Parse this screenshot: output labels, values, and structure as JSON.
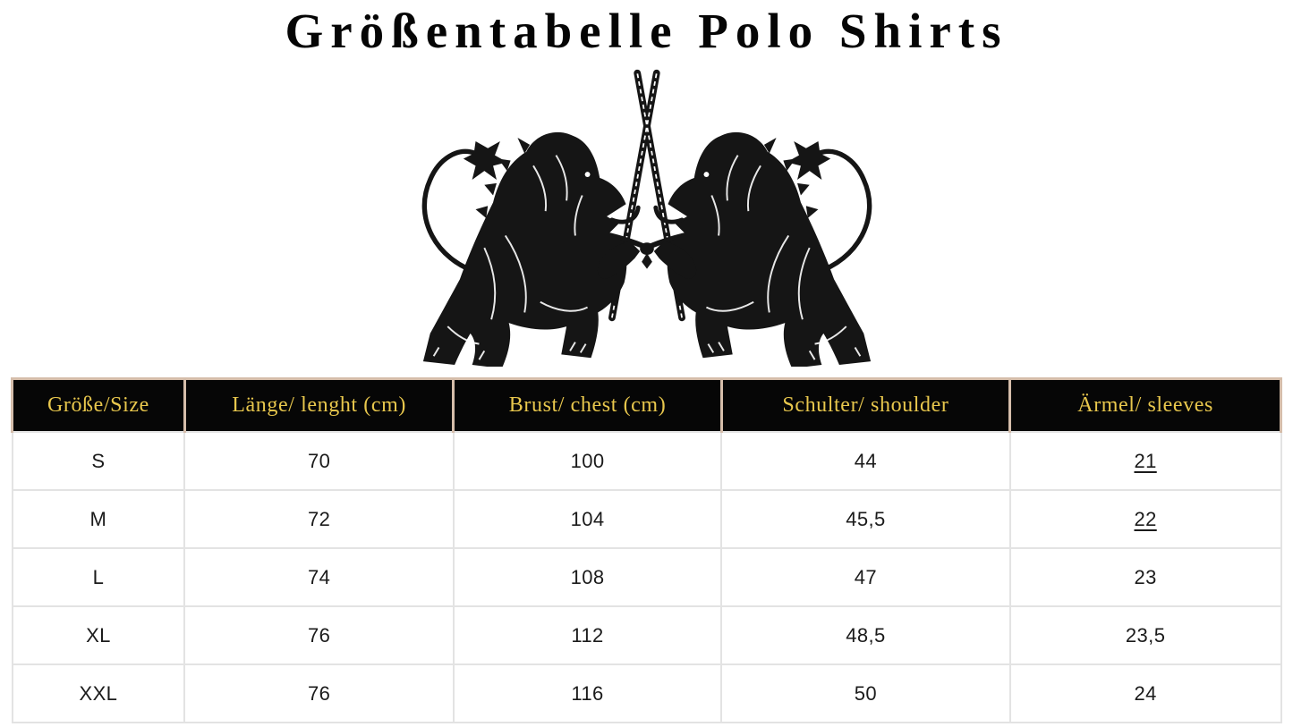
{
  "page": {
    "title": "Größentabelle Polo Shirts"
  },
  "emblem": {
    "description": "two heraldic lions facing each other holding crossed swords",
    "color": "#151515"
  },
  "colors": {
    "background": "#ffffff",
    "title_text": "#050505",
    "header_background": "#060606",
    "header_text_gold": "#e8c74d",
    "header_border_tan": "#d5bdaa",
    "body_border_gray": "#e3e3e3",
    "body_text": "#1b1b1b"
  },
  "table": {
    "headers": [
      "Größe/Size",
      "Länge/ lenght (cm)",
      "Brust/ chest (cm)",
      "Schulter/ shoulder",
      "Ärmel/ sleeves"
    ],
    "rows": [
      {
        "cells": [
          {
            "text": "S"
          },
          {
            "text": "70"
          },
          {
            "text": "100"
          },
          {
            "text": "44"
          },
          {
            "text": "21",
            "underline": true
          }
        ]
      },
      {
        "cells": [
          {
            "text": "M"
          },
          {
            "text": "72"
          },
          {
            "text": "104"
          },
          {
            "text": "45,5"
          },
          {
            "text": "22",
            "underline": true
          }
        ]
      },
      {
        "cells": [
          {
            "text": "L"
          },
          {
            "text": "74"
          },
          {
            "text": "108"
          },
          {
            "text": "47"
          },
          {
            "text": "23"
          }
        ]
      },
      {
        "cells": [
          {
            "text": "XL"
          },
          {
            "text": "76"
          },
          {
            "text": "112"
          },
          {
            "text": "48,5"
          },
          {
            "text": "23,5"
          }
        ]
      },
      {
        "cells": [
          {
            "text": "XXL"
          },
          {
            "text": "76"
          },
          {
            "text": "116"
          },
          {
            "text": "50"
          },
          {
            "text": "24"
          }
        ]
      }
    ]
  },
  "chart_data": {
    "type": "table",
    "title": "Größentabelle Polo Shirts",
    "columns": [
      "Größe/Size",
      "Länge/ lenght (cm)",
      "Brust/ chest (cm)",
      "Schulter/ shoulder",
      "Ärmel/ sleeves"
    ],
    "rows": [
      [
        "S",
        "70",
        "100",
        "44",
        "21"
      ],
      [
        "M",
        "72",
        "104",
        "45,5",
        "22"
      ],
      [
        "L",
        "74",
        "108",
        "47",
        "23"
      ],
      [
        "XL",
        "76",
        "112",
        "48,5",
        "23,5"
      ],
      [
        "XXL",
        "76",
        "116",
        "50",
        "24"
      ]
    ]
  }
}
